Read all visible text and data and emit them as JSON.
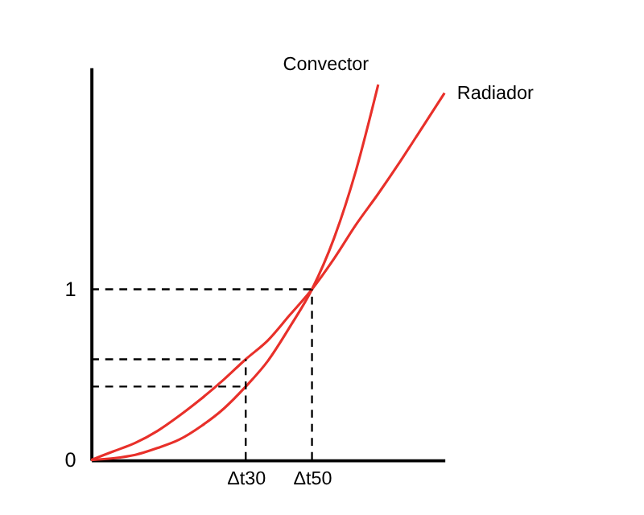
{
  "chart_data": {
    "type": "line",
    "categories": [
      null,
      null,
      null,
      null,
      null,
      null,
      null,
      "Δt30",
      null,
      null,
      "Δt50",
      null,
      null,
      null,
      null,
      null,
      null
    ],
    "ylim": [
      0,
      2.3
    ],
    "yticks": [
      0,
      1
    ],
    "grid": false,
    "marker": "none",
    "line_style": "solid",
    "series": [
      {
        "name": "Convector",
        "color": "#e8302a",
        "values": [
          0,
          0.01,
          0.03,
          0.07,
          0.12,
          0.2,
          0.3,
          0.43,
          0.58,
          0.78,
          1,
          1.3,
          1.7,
          2.2,
          null,
          null,
          null
        ]
      },
      {
        "name": "Radiador",
        "color": "#e8302a",
        "values": [
          0,
          0.05,
          0.1,
          0.17,
          0.26,
          0.36,
          0.47,
          0.59,
          0.7,
          0.85,
          1,
          1.18,
          1.38,
          1.56,
          1.75,
          1.95,
          2.15
        ]
      },
      {
        "line_style": "dashed",
        "color": "#000000",
        "values": [
          1,
          1,
          1,
          1,
          1,
          1,
          1,
          1,
          1,
          1,
          1,
          null,
          null,
          null,
          null,
          null,
          null
        ]
      },
      {
        "line_style": "dashed",
        "color": "#000000",
        "x": [
          "Δt50",
          "Δt50"
        ],
        "values": [
          0,
          1
        ]
      },
      {
        "line_style": "dashed",
        "color": "#000000",
        "values": [
          0.59,
          0.59,
          0.59,
          0.59,
          0.59,
          0.59,
          0.59,
          0.59,
          null,
          null,
          null,
          null,
          null,
          null,
          null,
          null,
          null
        ]
      },
      {
        "line_style": "dashed",
        "color": "#000000",
        "values": [
          0.43,
          0.43,
          0.43,
          0.43,
          0.43,
          0.43,
          0.43,
          0.43,
          null,
          null,
          null,
          null,
          null,
          null,
          null,
          null,
          null
        ]
      },
      {
        "line_style": "dashed",
        "color": "#000000",
        "x": [
          "Δt30",
          "Δt30"
        ],
        "values": [
          0,
          0.59
        ]
      }
    ]
  }
}
